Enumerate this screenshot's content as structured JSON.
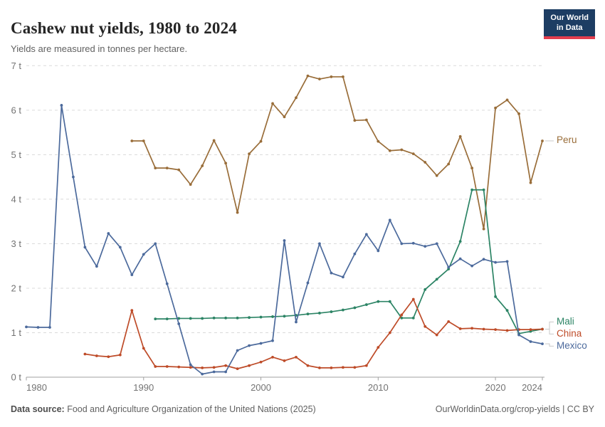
{
  "header": {
    "title": "Cashew nut yields, 1980 to 2024",
    "subtitle": "Yields are measured in tonnes per hectare.",
    "logo_line1": "Our World",
    "logo_line2": "in Data",
    "logo_bg": "#1d3d63",
    "logo_accent": "#e23d4e"
  },
  "footer": {
    "source_label": "Data source:",
    "source_text": " Food and Agriculture Organization of the United Nations (2025)",
    "link_text": "OurWorldinData.org/crop-yields | CC BY"
  },
  "chart_data": {
    "type": "line",
    "title": "Cashew nut yields, 1980 to 2024",
    "unit": "tonnes per hectare",
    "xlabel": "",
    "ylabel": "",
    "ylim": [
      0,
      7
    ],
    "xlim": [
      1980,
      2024
    ],
    "grid": "dashed horizontal",
    "legend_position": "right-edge labels",
    "y_tick_labels": [
      "0 t",
      "1 t",
      "2 t",
      "3 t",
      "4 t",
      "5 t",
      "6 t",
      "7 t"
    ],
    "x_tick_labels": [
      "1980",
      "1990",
      "2000",
      "2010",
      "2020",
      "2024"
    ],
    "x_tick_years": [
      1980,
      1990,
      2000,
      2010,
      2020,
      2024
    ],
    "series": [
      {
        "name": "Peru",
        "color": "#996D39",
        "start_year": 1989,
        "end_year": 2024,
        "values": [
          5.31,
          5.31,
          4.7,
          4.7,
          4.66,
          4.33,
          4.75,
          5.32,
          4.81,
          3.7,
          5.02,
          5.3,
          6.15,
          5.85,
          6.28,
          6.77,
          6.7,
          6.75,
          6.75,
          5.77,
          5.78,
          5.3,
          5.09,
          5.11,
          5.02,
          4.83,
          4.53,
          4.79,
          5.41,
          4.7,
          3.33,
          6.05,
          6.23,
          5.92,
          4.37,
          5.31
        ]
      },
      {
        "name": "Mali",
        "color": "#2C8465",
        "start_year": 1991,
        "end_year": 2024,
        "values": [
          1.31,
          1.31,
          1.32,
          1.32,
          1.32,
          1.33,
          1.33,
          1.33,
          1.34,
          1.35,
          1.36,
          1.37,
          1.39,
          1.42,
          1.44,
          1.47,
          1.51,
          1.56,
          1.63,
          1.7,
          1.7,
          1.33,
          1.33,
          1.97,
          2.2,
          2.43,
          3.05,
          4.21,
          4.21,
          1.81,
          1.5,
          0.98,
          1.03,
          1.08
        ]
      },
      {
        "name": "China",
        "color": "#BE4B28",
        "start_year": 1985,
        "end_year": 2024,
        "values": [
          0.52,
          0.48,
          0.46,
          0.5,
          1.5,
          0.65,
          0.24,
          0.24,
          0.23,
          0.22,
          0.21,
          0.22,
          0.26,
          0.19,
          0.26,
          0.34,
          0.45,
          0.37,
          0.45,
          0.26,
          0.21,
          0.21,
          0.22,
          0.22,
          0.26,
          0.67,
          1.0,
          1.4,
          1.75,
          1.14,
          0.95,
          1.25,
          1.09,
          1.1,
          1.08,
          1.07,
          1.05,
          1.07,
          1.07,
          1.08
        ]
      },
      {
        "name": "Mexico",
        "color": "#4C6A9C",
        "start_year": 1980,
        "end_year": 2024,
        "values": [
          1.13,
          1.12,
          1.12,
          6.11,
          4.5,
          2.92,
          2.49,
          3.23,
          2.92,
          2.3,
          2.76,
          3.0,
          2.1,
          1.2,
          0.28,
          0.07,
          0.12,
          0.12,
          0.6,
          0.71,
          0.76,
          0.82,
          3.07,
          1.24,
          2.12,
          3.0,
          2.34,
          2.25,
          2.77,
          3.21,
          2.84,
          3.53,
          3.0,
          3.01,
          2.94,
          3.0,
          2.47,
          2.66,
          2.5,
          2.65,
          2.58,
          2.6,
          0.95,
          0.8,
          0.75
        ]
      }
    ]
  }
}
